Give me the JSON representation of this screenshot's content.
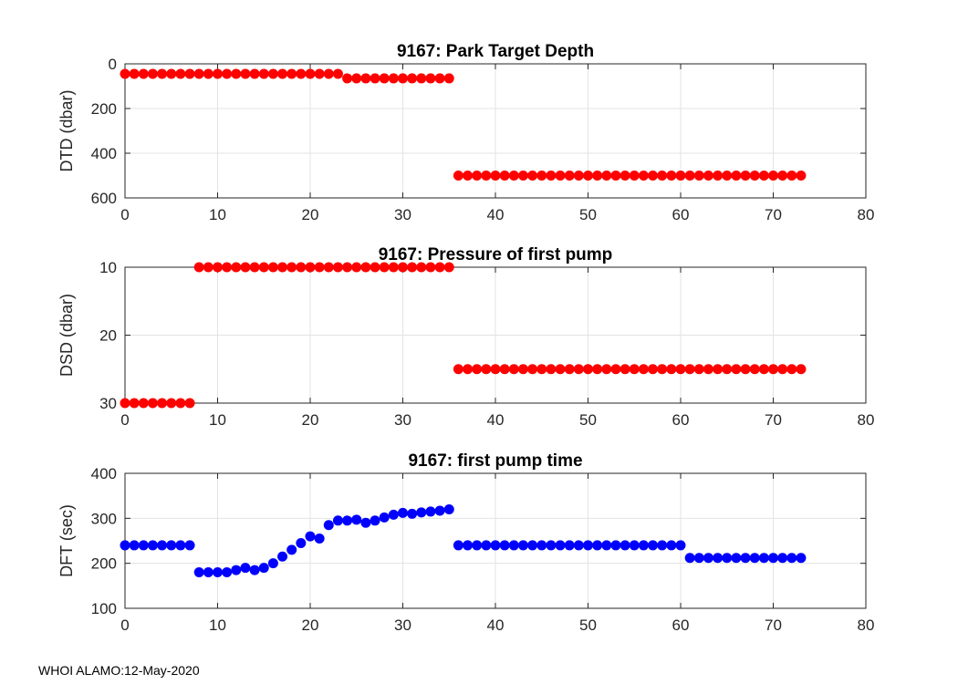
{
  "footer": "WHOI ALAMO:12-May-2020",
  "chart_data": [
    {
      "type": "scatter",
      "title": "9167: Park Target Depth",
      "xlabel": "",
      "ylabel": "DTD (dbar)",
      "xlim": [
        0,
        80
      ],
      "ylim": [
        0,
        600
      ],
      "y_reversed": true,
      "xticks": [
        "0",
        "10",
        "20",
        "30",
        "40",
        "50",
        "60",
        "70",
        "80"
      ],
      "yticks": [
        "0",
        "200",
        "400",
        "600"
      ],
      "grid": true,
      "color": "#ff0000",
      "series": [
        {
          "x": [
            0,
            1,
            2,
            3,
            4,
            5,
            6,
            7,
            8,
            9,
            10,
            11,
            12,
            13,
            14,
            15,
            16,
            17,
            18,
            19,
            20,
            21,
            22,
            23,
            24,
            25,
            26,
            27,
            28,
            29,
            30,
            31,
            32,
            33,
            34,
            35,
            36,
            37,
            38,
            39,
            40,
            41,
            42,
            43,
            44,
            45,
            46,
            47,
            48,
            49,
            50,
            51,
            52,
            53,
            54,
            55,
            56,
            57,
            58,
            59,
            60,
            61,
            62,
            63,
            64,
            65,
            66,
            67,
            68,
            69,
            70,
            71,
            72,
            73
          ],
          "y": [
            45,
            45,
            45,
            45,
            45,
            45,
            45,
            45,
            45,
            45,
            45,
            45,
            45,
            45,
            45,
            45,
            45,
            45,
            45,
            45,
            45,
            45,
            45,
            45,
            65,
            65,
            65,
            65,
            65,
            65,
            65,
            65,
            65,
            65,
            65,
            65,
            500,
            500,
            500,
            500,
            500,
            500,
            500,
            500,
            500,
            500,
            500,
            500,
            500,
            500,
            500,
            500,
            500,
            500,
            500,
            500,
            500,
            500,
            500,
            500,
            500,
            500,
            500,
            500,
            500,
            500,
            500,
            500,
            500,
            500,
            500,
            500,
            500,
            500
          ]
        }
      ]
    },
    {
      "type": "scatter",
      "title": "9167: Pressure of first pump",
      "xlabel": "",
      "ylabel": "DSD (dbar)",
      "xlim": [
        0,
        80
      ],
      "ylim": [
        10,
        30
      ],
      "y_reversed": true,
      "xticks": [
        "0",
        "10",
        "20",
        "30",
        "40",
        "50",
        "60",
        "70",
        "80"
      ],
      "yticks": [
        "10",
        "20",
        "30"
      ],
      "grid": true,
      "color": "#ff0000",
      "series": [
        {
          "x": [
            0,
            1,
            2,
            3,
            4,
            5,
            6,
            7,
            8,
            9,
            10,
            11,
            12,
            13,
            14,
            15,
            16,
            17,
            18,
            19,
            20,
            21,
            22,
            23,
            24,
            25,
            26,
            27,
            28,
            29,
            30,
            31,
            32,
            33,
            34,
            35,
            36,
            37,
            38,
            39,
            40,
            41,
            42,
            43,
            44,
            45,
            46,
            47,
            48,
            49,
            50,
            51,
            52,
            53,
            54,
            55,
            56,
            57,
            58,
            59,
            60,
            61,
            62,
            63,
            64,
            65,
            66,
            67,
            68,
            69,
            70,
            71,
            72,
            73
          ],
          "y": [
            30,
            30,
            30,
            30,
            30,
            30,
            30,
            30,
            10,
            10,
            10,
            10,
            10,
            10,
            10,
            10,
            10,
            10,
            10,
            10,
            10,
            10,
            10,
            10,
            10,
            10,
            10,
            10,
            10,
            10,
            10,
            10,
            10,
            10,
            10,
            10,
            25,
            25,
            25,
            25,
            25,
            25,
            25,
            25,
            25,
            25,
            25,
            25,
            25,
            25,
            25,
            25,
            25,
            25,
            25,
            25,
            25,
            25,
            25,
            25,
            25,
            25,
            25,
            25,
            25,
            25,
            25,
            25,
            25,
            25,
            25,
            25,
            25,
            25
          ]
        }
      ]
    },
    {
      "type": "scatter",
      "title": "9167: first pump time",
      "xlabel": "",
      "ylabel": "DFT (sec)",
      "xlim": [
        0,
        80
      ],
      "ylim": [
        100,
        400
      ],
      "y_reversed": false,
      "xticks": [
        "0",
        "10",
        "20",
        "30",
        "40",
        "50",
        "60",
        "70",
        "80"
      ],
      "yticks": [
        "100",
        "200",
        "300",
        "400"
      ],
      "grid": true,
      "color": "#0000ff",
      "series": [
        {
          "x": [
            0,
            1,
            2,
            3,
            4,
            5,
            6,
            7,
            8,
            9,
            10,
            11,
            12,
            13,
            14,
            15,
            16,
            17,
            18,
            19,
            20,
            21,
            22,
            23,
            24,
            25,
            26,
            27,
            28,
            29,
            30,
            31,
            32,
            33,
            34,
            35,
            36,
            37,
            38,
            39,
            40,
            41,
            42,
            43,
            44,
            45,
            46,
            47,
            48,
            49,
            50,
            51,
            52,
            53,
            54,
            55,
            56,
            57,
            58,
            59,
            60,
            61,
            62,
            63,
            64,
            65,
            66,
            67,
            68,
            69,
            70,
            71,
            72,
            73
          ],
          "y": [
            240,
            240,
            240,
            240,
            240,
            240,
            240,
            240,
            180,
            180,
            180,
            180,
            185,
            190,
            185,
            190,
            200,
            215,
            230,
            245,
            260,
            255,
            285,
            295,
            295,
            297,
            290,
            295,
            302,
            308,
            312,
            310,
            313,
            315,
            317,
            320,
            240,
            240,
            240,
            240,
            240,
            240,
            240,
            240,
            240,
            240,
            240,
            240,
            240,
            240,
            240,
            240,
            240,
            240,
            240,
            240,
            240,
            240,
            240,
            240,
            240,
            212,
            212,
            212,
            212,
            212,
            212,
            212,
            212,
            212,
            212,
            212,
            212,
            212
          ]
        }
      ]
    }
  ]
}
